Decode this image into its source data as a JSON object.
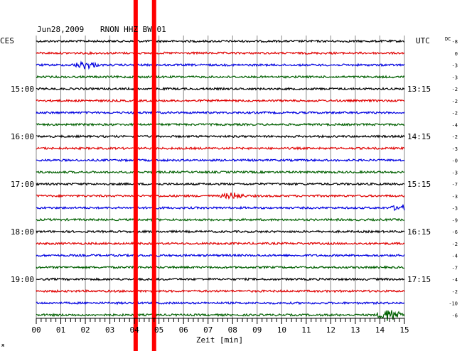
{
  "header": {
    "date": "Jun28,2009",
    "station": "RNON HHZ BW 01",
    "left_zone": "CES",
    "right_zone": "UTC",
    "dc_label": "DC"
  },
  "chart_data": {
    "type": "line",
    "title": "Jun28,2009   RNON HHZ BW 01",
    "xlabel": "Zeit [min]",
    "xlim": [
      0,
      15
    ],
    "x_ticks": [
      "00",
      "01",
      "02",
      "03",
      "04",
      "05",
      "06",
      "07",
      "08",
      "09",
      "10",
      "11",
      "12",
      "13",
      "14",
      "15"
    ],
    "trace_count": 24,
    "trace_colors": [
      "#000000",
      "#e00000",
      "#0000e0",
      "#006000"
    ],
    "left_time_labels": [
      {
        "trace": 4,
        "text": "15:00"
      },
      {
        "trace": 8,
        "text": "16:00"
      },
      {
        "trace": 12,
        "text": "17:00"
      },
      {
        "trace": 16,
        "text": "18:00"
      },
      {
        "trace": 20,
        "text": "19:00"
      }
    ],
    "right_time_labels": [
      {
        "trace": 4,
        "text": "13:15"
      },
      {
        "trace": 8,
        "text": "14:15"
      },
      {
        "trace": 12,
        "text": "15:15"
      },
      {
        "trace": 16,
        "text": "16:15"
      },
      {
        "trace": 20,
        "text": "17:15"
      }
    ],
    "dc_offsets": [
      "-8",
      "0",
      "-3",
      "-3",
      "-2",
      "-2",
      "-2",
      "-4",
      "-2",
      "-3",
      "-0",
      "-3",
      "-7",
      "-3",
      "-3",
      "-9",
      "-6",
      "-2",
      "-4",
      "-7",
      "-4",
      "-2",
      "-10",
      "-6"
    ],
    "marker_lines_min": [
      4.05,
      4.8
    ],
    "marker_color": "#ff0000",
    "events": [
      {
        "trace": 2,
        "minute": 2.0,
        "amplitude": 5
      },
      {
        "trace": 13,
        "minute": 8.0,
        "amplitude": 4
      },
      {
        "trace": 14,
        "minute": 14.9,
        "amplitude": 4
      },
      {
        "trace": 23,
        "minute": 14.4,
        "amplitude": 9
      }
    ]
  }
}
